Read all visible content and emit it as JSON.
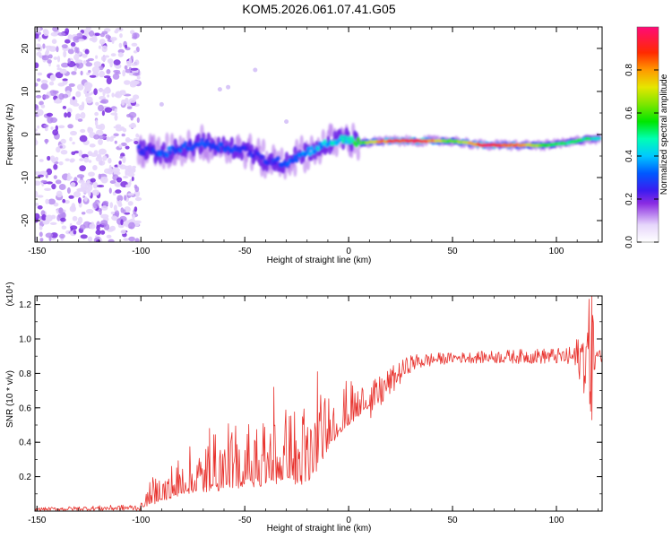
{
  "chart_data": [
    {
      "type": "heatmap",
      "title": "KOM5.2026.061.07.41.G05",
      "xlabel": "Height of straight line (km)",
      "ylabel": "Frequency (Hz)",
      "xlim": [
        -151,
        122
      ],
      "ylim": [
        -25,
        25
      ],
      "xticks": [
        -150,
        -100,
        -50,
        0,
        50,
        100
      ],
      "yticks": [
        -20,
        -10,
        0,
        10,
        20
      ],
      "colorbar": {
        "label": "Normalized spectral amplitude",
        "range": [
          0,
          1
        ],
        "ticks": [
          "0.0",
          "0.2",
          "0.4",
          "0.6",
          "0.8"
        ]
      },
      "noise_region_x": [
        -151,
        -101
      ],
      "ridge": [
        {
          "x": -100,
          "y": -3.5,
          "amp": 0.25
        },
        {
          "x": -90,
          "y": -4.5,
          "amp": 0.3
        },
        {
          "x": -80,
          "y": -3,
          "amp": 0.3
        },
        {
          "x": -70,
          "y": -2,
          "amp": 0.3
        },
        {
          "x": -60,
          "y": -3,
          "amp": 0.3
        },
        {
          "x": -50,
          "y": -3.5,
          "amp": 0.25
        },
        {
          "x": -40,
          "y": -6,
          "amp": 0.25
        },
        {
          "x": -30,
          "y": -6.5,
          "amp": 0.3
        },
        {
          "x": -20,
          "y": -4,
          "amp": 0.35
        },
        {
          "x": -10,
          "y": -2,
          "amp": 0.4
        },
        {
          "x": 0,
          "y": -1,
          "amp": 0.45
        },
        {
          "x": 5,
          "y": -2,
          "amp": 0.6
        },
        {
          "x": 20,
          "y": -1.5,
          "amp": 0.9
        },
        {
          "x": 35,
          "y": -1.5,
          "amp": 0.95
        },
        {
          "x": 50,
          "y": -1.5,
          "amp": 0.6
        },
        {
          "x": 65,
          "y": -2.5,
          "amp": 0.95
        },
        {
          "x": 80,
          "y": -2.5,
          "amp": 0.85
        },
        {
          "x": 95,
          "y": -2.5,
          "amp": 0.6
        },
        {
          "x": 105,
          "y": -2,
          "amp": 0.5
        },
        {
          "x": 115,
          "y": -1,
          "amp": 0.5
        },
        {
          "x": 120,
          "y": -1,
          "amp": 0.4
        }
      ]
    },
    {
      "type": "line",
      "xlabel": "Height of straight line (km)",
      "ylabel": "SNR (10 * v/v)",
      "multiplier_label": "(x10⁴)",
      "xlim": [
        -151,
        122
      ],
      "ylim": [
        0,
        1.25
      ],
      "xticks": [
        -150,
        -100,
        -50,
        0,
        50,
        100
      ],
      "yticks": [
        "0.2",
        "0.4",
        "0.6",
        "0.8",
        "1.0",
        "1.2"
      ],
      "series": [
        {
          "name": "SNR",
          "color": "#e8332e",
          "trend": {
            "x": [
              -151,
              -100,
              -95,
              -80,
              -60,
              -40,
              -20,
              -15,
              -5,
              0,
              5,
              10,
              20,
              30,
              40,
              50,
              70,
              90,
              100,
              110,
              115,
              118,
              122
            ],
            "y": [
              0.01,
              0.02,
              0.05,
              0.13,
              0.17,
              0.2,
              0.22,
              0.28,
              0.48,
              0.52,
              0.58,
              0.62,
              0.75,
              0.86,
              0.88,
              0.89,
              0.895,
              0.9,
              0.9,
              0.89,
              0.9,
              0.9,
              0.9
            ]
          },
          "noise_amplitude": [
            {
              "x": -151,
              "a": 0.01
            },
            {
              "x": -100,
              "a": 0.02
            },
            {
              "x": -95,
              "a": 0.12
            },
            {
              "x": -60,
              "a": 0.28
            },
            {
              "x": -20,
              "a": 0.38
            },
            {
              "x": 0,
              "a": 0.2
            },
            {
              "x": 10,
              "a": 0.12
            },
            {
              "x": 30,
              "a": 0.05
            },
            {
              "x": 50,
              "a": 0.03
            },
            {
              "x": 105,
              "a": 0.05
            },
            {
              "x": 112,
              "a": 0.15
            },
            {
              "x": 117,
              "a": 0.4
            },
            {
              "x": 119,
              "a": 0.05
            },
            {
              "x": 122,
              "a": 0.03
            }
          ],
          "spikes": [
            {
              "x": -15,
              "y": 0.81
            },
            {
              "x": -36,
              "y": 0.72
            },
            {
              "x": -67,
              "y": 0.48
            },
            {
              "x": 117,
              "y": 1.25
            },
            {
              "x": 116.5,
              "y": 0.58
            }
          ]
        }
      ]
    }
  ]
}
